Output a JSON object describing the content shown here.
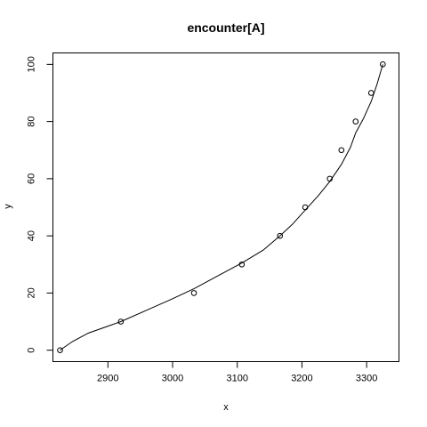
{
  "chart_data": {
    "type": "scatter",
    "title": "encounter[A]",
    "xlabel": "x",
    "ylabel": "y",
    "xlim": [
      2815,
      3350
    ],
    "ylim": [
      -4,
      104
    ],
    "x_ticks": [
      2900,
      3000,
      3100,
      3200,
      3300
    ],
    "y_ticks": [
      0,
      20,
      40,
      60,
      80,
      100
    ],
    "grid": false,
    "legend": "none",
    "series": [
      {
        "type": "points",
        "marker": "open-circle",
        "x": [
          2826,
          2920,
          3033,
          3107,
          3166,
          3205,
          3243,
          3261,
          3283,
          3307,
          3325
        ],
        "y": [
          0,
          10,
          20,
          30,
          40,
          50,
          60,
          70,
          80,
          90,
          100
        ]
      },
      {
        "type": "line",
        "x": [
          2826,
          2845,
          2870,
          2920,
          2960,
          3000,
          3033,
          3070,
          3107,
          3140,
          3166,
          3185,
          3205,
          3225,
          3243,
          3261,
          3275,
          3283,
          3295,
          3307,
          3316,
          3325
        ],
        "y": [
          0,
          3,
          6,
          10,
          14,
          18,
          21.5,
          26,
          30.5,
          35,
          40,
          44,
          49,
          54,
          59,
          65,
          71,
          76,
          81,
          87,
          93,
          100
        ]
      }
    ],
    "colors": {
      "ink": "#000000",
      "background": "#ffffff"
    }
  }
}
